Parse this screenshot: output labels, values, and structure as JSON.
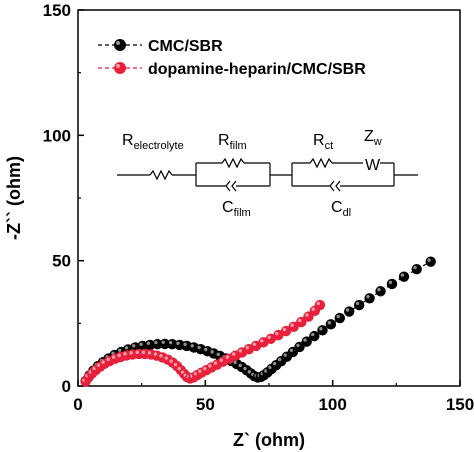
{
  "chart_data": {
    "type": "scatter",
    "xlabel": "Z` (ohm)",
    "ylabel": "-Z`` (ohm)",
    "xlim": [
      0,
      150
    ],
    "ylim": [
      0,
      150
    ],
    "x_ticks": [
      "0",
      "50",
      "100",
      "150"
    ],
    "y_ticks": [
      "0",
      "50",
      "100",
      "150"
    ],
    "legend_position": "top-left",
    "series": [
      {
        "name": "CMC/SBR",
        "color": "#000000",
        "points": [
          [
            3.0,
            2.0
          ],
          [
            4.5,
            4.2
          ],
          [
            6.0,
            6.1
          ],
          [
            7.8,
            7.9
          ],
          [
            9.8,
            9.5
          ],
          [
            12.0,
            11.0
          ],
          [
            14.4,
            12.4
          ],
          [
            17.0,
            13.6
          ],
          [
            19.7,
            14.6
          ],
          [
            22.5,
            15.4
          ],
          [
            25.4,
            16.0
          ],
          [
            28.3,
            16.4
          ],
          [
            31.2,
            16.7
          ],
          [
            34.1,
            16.8
          ],
          [
            37.0,
            16.7
          ],
          [
            39.9,
            16.4
          ],
          [
            42.7,
            16.0
          ],
          [
            45.5,
            15.4
          ],
          [
            48.2,
            14.7
          ],
          [
            50.8,
            13.9
          ],
          [
            53.3,
            13.0
          ],
          [
            55.7,
            12.0
          ],
          [
            58.0,
            11.0
          ],
          [
            60.2,
            10.0
          ],
          [
            62.3,
            8.8
          ],
          [
            64.3,
            7.6
          ],
          [
            66.2,
            6.3
          ],
          [
            67.9,
            5.0
          ],
          [
            69.3,
            3.9
          ],
          [
            70.6,
            3.4
          ],
          [
            71.8,
            3.6
          ],
          [
            73.0,
            4.3
          ],
          [
            74.4,
            5.4
          ],
          [
            76.0,
            6.8
          ],
          [
            77.8,
            8.3
          ],
          [
            79.8,
            9.9
          ],
          [
            82.0,
            11.7
          ],
          [
            84.4,
            13.6
          ],
          [
            87.0,
            15.6
          ],
          [
            89.8,
            17.7
          ],
          [
            92.8,
            19.9
          ],
          [
            96.0,
            22.2
          ],
          [
            99.3,
            24.6
          ],
          [
            102.8,
            27.1
          ],
          [
            106.5,
            29.7
          ],
          [
            110.4,
            32.3
          ],
          [
            114.5,
            35.0
          ],
          [
            118.8,
            37.8
          ],
          [
            123.3,
            40.7
          ],
          [
            128.0,
            43.6
          ],
          [
            133.0,
            46.6
          ],
          [
            138.5,
            49.6
          ]
        ]
      },
      {
        "name": "dopamine-heparin/CMC/SBR",
        "color": "#e8203c",
        "points": [
          [
            3.0,
            1.8
          ],
          [
            4.2,
            3.5
          ],
          [
            5.5,
            5.0
          ],
          [
            7.0,
            6.4
          ],
          [
            8.7,
            7.7
          ],
          [
            10.5,
            8.9
          ],
          [
            12.5,
            10.0
          ],
          [
            14.6,
            10.9
          ],
          [
            16.8,
            11.6
          ],
          [
            19.1,
            12.2
          ],
          [
            21.5,
            12.6
          ],
          [
            23.9,
            12.8
          ],
          [
            26.3,
            12.8
          ],
          [
            28.7,
            12.6
          ],
          [
            31.0,
            12.1
          ],
          [
            33.2,
            11.4
          ],
          [
            35.3,
            10.5
          ],
          [
            37.2,
            9.3
          ],
          [
            38.9,
            7.9
          ],
          [
            40.4,
            6.3
          ],
          [
            41.7,
            4.8
          ],
          [
            42.8,
            3.6
          ],
          [
            44.0,
            3.0
          ],
          [
            45.3,
            3.4
          ],
          [
            46.8,
            4.3
          ],
          [
            48.5,
            5.3
          ],
          [
            50.4,
            6.3
          ],
          [
            52.4,
            7.4
          ],
          [
            54.6,
            8.5
          ],
          [
            56.9,
            9.7
          ],
          [
            59.3,
            10.9
          ],
          [
            61.8,
            12.1
          ],
          [
            64.4,
            13.4
          ],
          [
            67.1,
            14.7
          ],
          [
            69.9,
            16.0
          ],
          [
            72.8,
            17.4
          ],
          [
            75.7,
            18.8
          ],
          [
            78.7,
            20.3
          ],
          [
            81.7,
            21.9
          ],
          [
            84.7,
            23.6
          ],
          [
            87.7,
            25.5
          ],
          [
            90.5,
            27.7
          ],
          [
            93.0,
            30.0
          ],
          [
            95.0,
            32.3
          ]
        ]
      }
    ],
    "inset_circuit": {
      "labels": {
        "r_electrolyte_main": "R",
        "r_electrolyte_sub": "electrolyte",
        "r_film_main": "R",
        "r_film_sub": "film",
        "c_film_main": "C",
        "c_film_sub": "film",
        "r_ct_main": "R",
        "r_ct_sub": "ct",
        "z_w_main": "Z",
        "z_w_sub": "w",
        "c_dl_main": "C",
        "c_dl_sub": "dl",
        "warburg_symbol": "W"
      }
    }
  }
}
